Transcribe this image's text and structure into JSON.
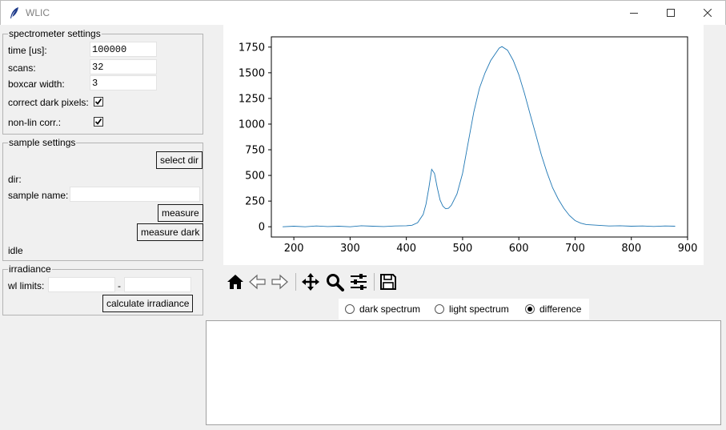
{
  "window": {
    "title": "WLIC"
  },
  "spectrometer": {
    "legend": "spectrometer settings",
    "time_label": "time [us]:",
    "time_value": "100000",
    "scans_label": "scans:",
    "scans_value": "32",
    "boxcar_label": "boxcar width:",
    "boxcar_value": "3",
    "dark_label": "correct dark pixels:",
    "dark_checked": true,
    "nonlin_label": "non-lin corr.:",
    "nonlin_checked": true
  },
  "sample": {
    "legend": "sample settings",
    "select_dir_label": "select dir",
    "dir_label": "dir:",
    "name_label": "sample name:",
    "name_value": "",
    "measure_label": "measure",
    "measure_dark_label": "measure dark",
    "status": "idle"
  },
  "irradiance": {
    "legend": "irradiance",
    "wl_label": "wl limits:",
    "wl_min": "",
    "dash": "-",
    "wl_max": "",
    "calc_label": "calculate irradiance"
  },
  "toolbar": {
    "icons": [
      "home-icon",
      "back-arrow-icon",
      "forward-arrow-icon",
      "pan-icon",
      "zoom-icon",
      "configure-subplots-icon",
      "save-icon"
    ]
  },
  "view_mode": {
    "options": [
      "dark spectrum",
      "light spectrum",
      "difference"
    ],
    "selected": "difference"
  },
  "colors": {
    "line": "#1f77b4"
  },
  "chart_data": {
    "type": "line",
    "xlim": [
      160,
      900
    ],
    "ylim": [
      -100,
      1850
    ],
    "x_ticks": [
      200,
      300,
      400,
      500,
      600,
      700,
      800,
      900
    ],
    "y_ticks": [
      0,
      250,
      500,
      750,
      1000,
      1250,
      1500,
      1750
    ],
    "series": [
      {
        "x": [
          180,
          200,
          220,
          240,
          260,
          280,
          300,
          320,
          340,
          360,
          380,
          400,
          410,
          420,
          430,
          435,
          440,
          445,
          450,
          455,
          460,
          465,
          470,
          475,
          480,
          490,
          500,
          510,
          520,
          530,
          540,
          550,
          560,
          565,
          570,
          580,
          590,
          600,
          610,
          620,
          630,
          640,
          650,
          660,
          670,
          680,
          690,
          700,
          710,
          720,
          740,
          760,
          780,
          800,
          820,
          840,
          860,
          878
        ],
        "y": [
          0,
          5,
          0,
          8,
          2,
          5,
          0,
          10,
          5,
          2,
          8,
          10,
          15,
          40,
          120,
          220,
          380,
          560,
          520,
          380,
          260,
          200,
          175,
          180,
          210,
          320,
          520,
          820,
          1120,
          1350,
          1500,
          1620,
          1700,
          1740,
          1755,
          1720,
          1620,
          1480,
          1300,
          1100,
          900,
          700,
          530,
          380,
          270,
          180,
          110,
          60,
          35,
          22,
          15,
          8,
          10,
          5,
          8,
          3,
          8,
          5
        ]
      }
    ]
  }
}
